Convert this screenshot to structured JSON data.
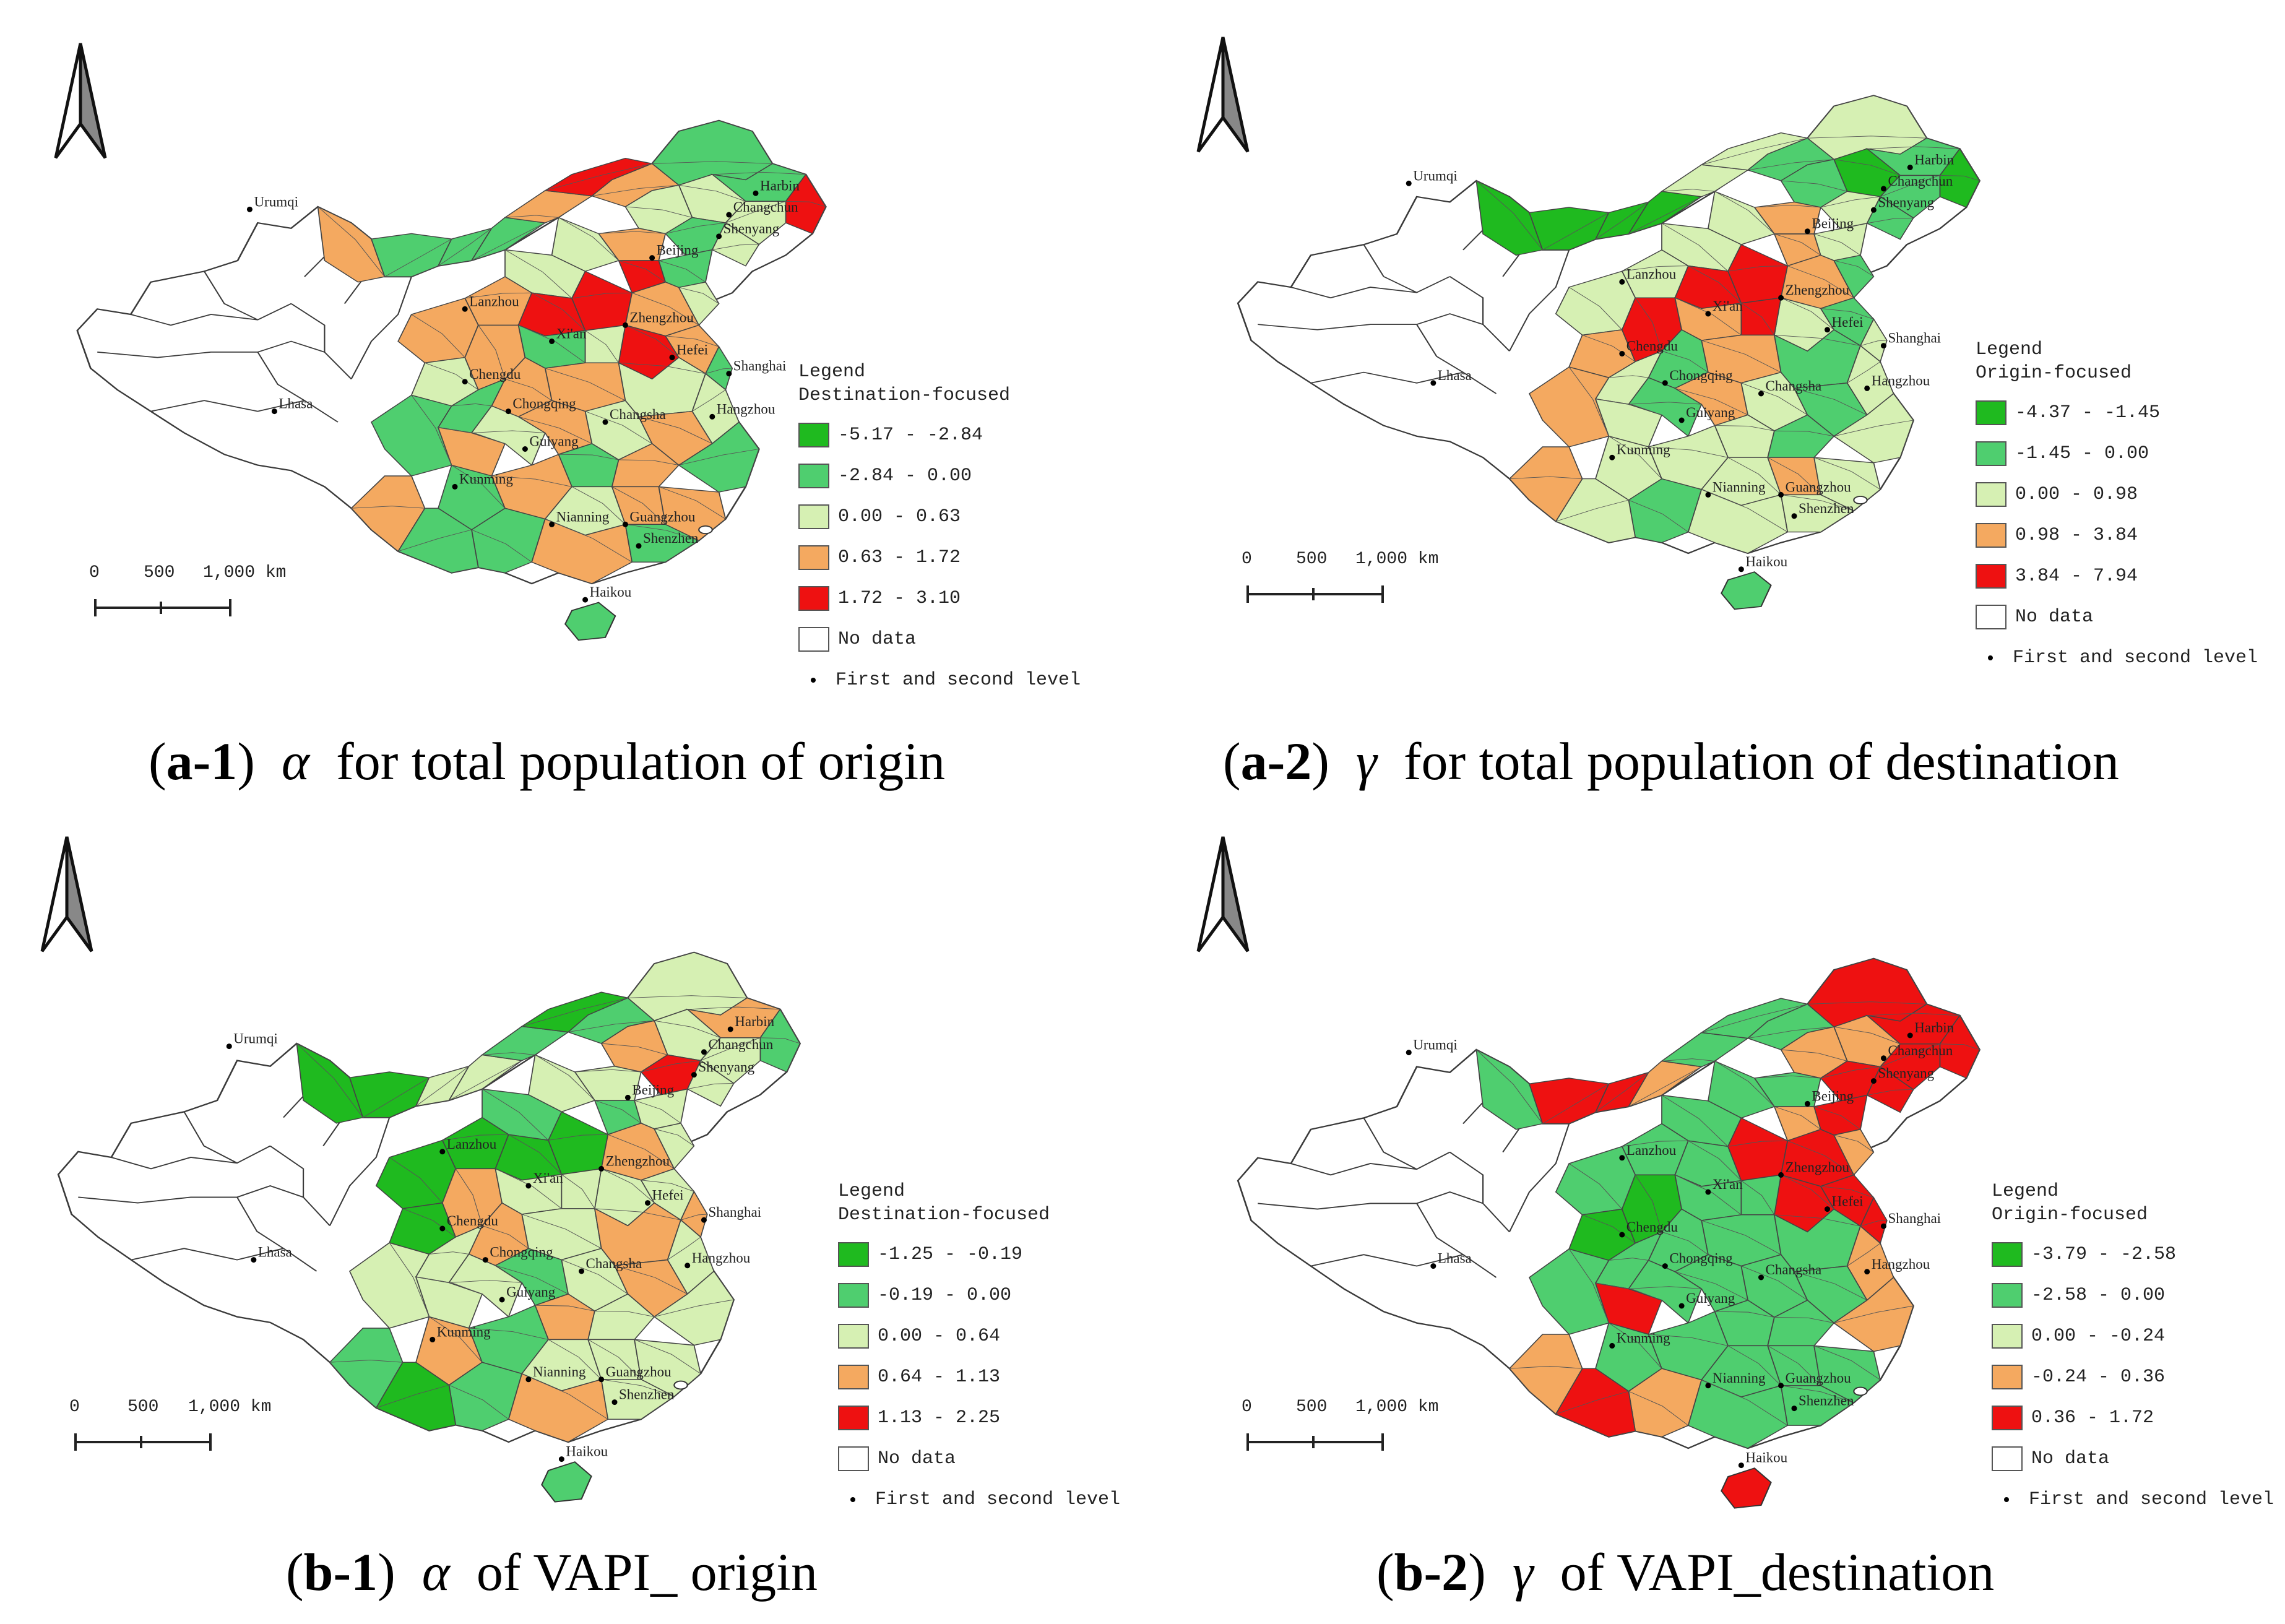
{
  "colors": {
    "dark_green": "#1fba1f",
    "green": "#4fce6f",
    "light_green": "#d6f0b3",
    "orange": "#f4a960",
    "red": "#ee1111",
    "no_data": "#ffffff",
    "outline": "#3a3a3a"
  },
  "north_arrow_icon": "north-arrow-icon",
  "scale": {
    "ticks": [
      "0",
      "500",
      "1,000 km"
    ]
  },
  "cities": [
    "Urumqi",
    "Harbin",
    "Changchun",
    "Shenyang",
    "Beijing",
    "Lanzhou",
    "Zhengzhou",
    "Xi'an",
    "Hefei",
    "Shanghai",
    "Lhasa",
    "Chengdu",
    "Chongqing",
    "Changsha",
    "Hangzhou",
    "Guiyang",
    "Kunming",
    "Nianning",
    "Guangzhou",
    "Shenzhen",
    "Haikou"
  ],
  "panels": [
    {
      "id": "a1",
      "caption": {
        "open": "(",
        "label": "a-1",
        "close": ")",
        "symbol": "α",
        "text": "for total population of origin"
      },
      "legend": {
        "title": "Legend",
        "subtitle": "Destination-focused",
        "classes": [
          "-5.17 - -2.84",
          "-2.84 - 0.00",
          "0.00 - 0.63",
          "0.63 - 1.72",
          "1.72 - 3.10"
        ],
        "no_data": "No data",
        "points": "First and second level"
      }
    },
    {
      "id": "a2",
      "caption": {
        "open": "(",
        "label": "a-2",
        "close": ")",
        "symbol": "γ",
        "text": "for total population of destination"
      },
      "legend": {
        "title": "Legend",
        "subtitle": "Origin-focused",
        "classes": [
          "-4.37 - -1.45",
          "-1.45 - 0.00",
          "0.00 - 0.98",
          "0.98 - 3.84",
          "3.84 - 7.94"
        ],
        "no_data": "No data",
        "points": "First and second level"
      }
    },
    {
      "id": "b1",
      "caption": {
        "open": "(",
        "label": "b-1",
        "close": ")",
        "symbol": "α",
        "text": "of VAPI_ origin"
      },
      "legend": {
        "title": "Legend",
        "subtitle": "Destination-focused",
        "classes": [
          "-1.25 - -0.19",
          "-0.19 - 0.00",
          "0.00 - 0.64",
          "0.64 - 1.13",
          "1.13 - 2.25"
        ],
        "no_data": "No data",
        "points": "First and second level"
      }
    },
    {
      "id": "b2",
      "caption": {
        "open": "(",
        "label": "b-2",
        "close": ")",
        "symbol": "γ",
        "text": "of VAPI_destination"
      },
      "legend": {
        "title": "Legend",
        "subtitle": "Origin-focused",
        "classes": [
          "-3.79 - -2.58",
          "-2.58 - 0.00",
          "0.00 - -0.24",
          "-0.24 - 0.36",
          "0.36 - 1.72"
        ],
        "no_data": "No data",
        "points": "First and second level"
      }
    }
  ]
}
